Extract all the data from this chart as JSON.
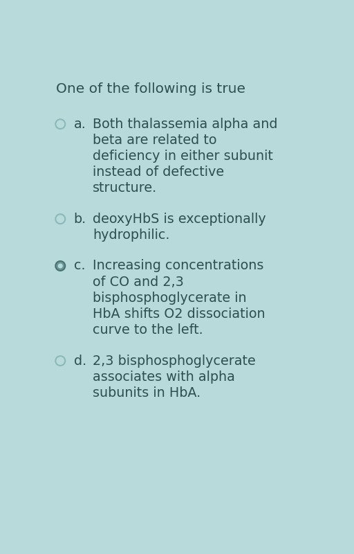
{
  "background_color": "#b8dada",
  "title": "One of the following is true",
  "text_color": "#2d4f50",
  "options": [
    {
      "label": "a.",
      "lines": [
        "Both thalassemia alpha and",
        "beta are related to",
        "deficiency in either subunit",
        "instead of defective",
        "structure."
      ],
      "selected": false
    },
    {
      "label": "b.",
      "lines": [
        "deoxyHbS is exceptionally",
        "hydrophilic."
      ],
      "selected": false
    },
    {
      "label": "c.",
      "lines": [
        "Increasing concentrations",
        "of CO and 2,3",
        "bisphosphoglycerate in",
        "HbA shifts O2 dissociation",
        "curve to the left."
      ],
      "selected": true
    },
    {
      "label": "d.",
      "lines": [
        "2,3 bisphosphoglycerate",
        "associates with alpha",
        "subunits in HbA."
      ],
      "selected": false
    }
  ],
  "title_fontsize": 14.5,
  "font_size": 13.8,
  "circle_edge_unselected": "#8bb8b8",
  "circle_edge_selected": "#4a7070",
  "circle_fill_selected": "#6a9898"
}
